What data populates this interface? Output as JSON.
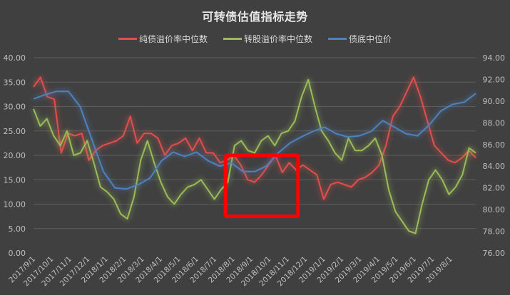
{
  "chart_data": {
    "type": "line",
    "title": "可转债估值指标走势",
    "legend_position": "top",
    "grid": true,
    "x": [
      "2017/9/1",
      "2017/10/1",
      "2017/11/1",
      "2017/12/1",
      "2018/1/1",
      "2018/2/1",
      "2018/3/1",
      "2018/4/1",
      "2018/5/1",
      "2018/6/1",
      "2018/7/1",
      "2018/8/1",
      "2018/9/1",
      "2018/10/1",
      "2018/11/1",
      "2018/12/1",
      "2019/1/1",
      "2019/2/1",
      "2019/3/1",
      "2019/4/1",
      "2019/5/1",
      "2019/6/1",
      "2019/7/1",
      "2019/8/1"
    ],
    "y_left": {
      "ticks": [
        "0.00",
        "5.00",
        "10.00",
        "15.00",
        "20.00",
        "25.00",
        "30.00",
        "35.00",
        "40.00"
      ],
      "range": [
        0,
        40
      ]
    },
    "y_right": {
      "ticks": [
        "76.00",
        "78.00",
        "80.00",
        "82.00",
        "84.00",
        "86.00",
        "88.00",
        "90.00",
        "92.00",
        "94.00"
      ],
      "range": [
        76,
        94
      ]
    },
    "series": [
      {
        "name": "纯债溢价率中位数",
        "axis": "left",
        "color": "#e0504c",
        "values": [
          34.0,
          36.0,
          32.0,
          31.5,
          20.5,
          24.5,
          24.0,
          24.5,
          19.0,
          21.0,
          22.0,
          22.5,
          23.0,
          24.0,
          28.0,
          22.5,
          24.5,
          24.5,
          23.5,
          20.0,
          22.0,
          22.5,
          23.5,
          21.0,
          23.5,
          20.5,
          20.5,
          18.5,
          19.0,
          20.0,
          18.0,
          15.0,
          14.5,
          16.0,
          18.0,
          20.0,
          16.5,
          18.5,
          17.0,
          18.0,
          17.0,
          16.0,
          11.0,
          14.0,
          14.5,
          14.0,
          13.5,
          15.0,
          15.5,
          16.5,
          18.0,
          22.0,
          28.0,
          30.0,
          33.0,
          36.0,
          32.0,
          27.0,
          22.0,
          20.5,
          19.0,
          18.5,
          19.5,
          21.0,
          19.5
        ]
      },
      {
        "name": "转股溢价率中位数",
        "axis": "left",
        "color": "#9bbb59",
        "values": [
          29.5,
          26.0,
          27.5,
          24.0,
          22.0,
          25.0,
          20.0,
          20.5,
          23.0,
          18.5,
          13.5,
          12.5,
          11.0,
          8.0,
          7.0,
          11.5,
          19.0,
          23.0,
          18.5,
          14.5,
          11.5,
          10.0,
          12.0,
          13.5,
          14.0,
          15.0,
          13.0,
          11.0,
          13.0,
          14.5,
          22.0,
          23.0,
          21.0,
          20.5,
          23.0,
          24.0,
          22.0,
          24.5,
          25.0,
          27.0,
          32.0,
          35.5,
          30.0,
          25.0,
          23.0,
          20.5,
          19.0,
          23.5,
          21.0,
          21.0,
          22.0,
          23.5,
          20.0,
          13.0,
          8.5,
          6.5,
          4.5,
          4.0,
          10.0,
          15.0,
          17.0,
          15.0,
          12.0,
          13.5,
          16.0,
          21.5,
          20.5
        ]
      },
      {
        "name": "债底中位价",
        "axis": "right",
        "color": "#4f81bd",
        "values": [
          90.2,
          90.6,
          90.9,
          90.9,
          89.5,
          86.5,
          83.5,
          82.0,
          81.9,
          82.3,
          82.9,
          84.5,
          85.3,
          84.9,
          85.3,
          84.5,
          84.0,
          84.3,
          83.5,
          83.5,
          84.0,
          85.2,
          86.1,
          86.7,
          87.2,
          87.6,
          87.0,
          86.7,
          86.8,
          87.2,
          88.2,
          87.6,
          87.0,
          86.8,
          87.8,
          89.1,
          89.7,
          89.9,
          90.7
        ]
      }
    ],
    "annotations": [
      {
        "type": "rectangle",
        "color": "#ff0000",
        "x_range": [
          "2018/7/1",
          "2018/11/1"
        ],
        "y_range_left": [
          7.5,
          20.0
        ]
      }
    ]
  }
}
